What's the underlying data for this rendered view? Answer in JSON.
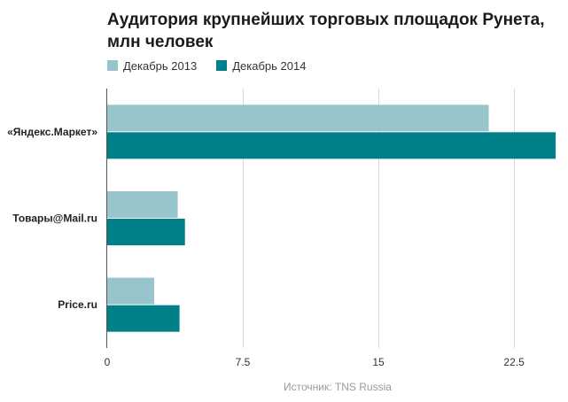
{
  "chart_data": {
    "type": "bar",
    "orientation": "horizontal",
    "title": "Аудитория крупнейших торговых площадок Рунета, млн человек",
    "categories": [
      "«Яндекс.Маркет»",
      "Товары@Mail.ru",
      "Price.ru"
    ],
    "series": [
      {
        "name": "Декабрь 2013",
        "values": [
          21.1,
          3.9,
          2.6
        ],
        "color": "#98c4cb"
      },
      {
        "name": "Декабрь 2014",
        "values": [
          24.8,
          4.3,
          4.0
        ],
        "color": "#00818a"
      }
    ],
    "xlim": [
      0,
      24.8
    ],
    "xticks": [
      0,
      7.5,
      15,
      22.5
    ],
    "xtick_labels": [
      "0",
      "7.5",
      "15",
      "22.5"
    ],
    "grid": true,
    "legend_position": "top-left",
    "source": "Источник: TNS Russia"
  }
}
